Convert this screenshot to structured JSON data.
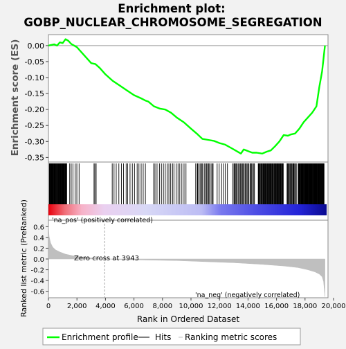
{
  "chart_data": {
    "type": "line",
    "title_line1": "Enrichment plot:",
    "title_line2": "GOBP_NUCLEAR_CHROMOSOME_SEGREGATION",
    "es_ylabel": "Enrichment score (ES)",
    "metric_ylabel": "Ranked list metric (PreRanked)",
    "xlabel": "Rank in Ordered Dataset",
    "xlim": [
      0,
      20000
    ],
    "x_ticks": [
      "0",
      "2,000",
      "4,000",
      "6,000",
      "8,000",
      "10,000",
      "12,000",
      "14,000",
      "16,000",
      "18,000",
      "20,000"
    ],
    "x_tick_values": [
      0,
      2000,
      4000,
      6000,
      8000,
      10000,
      12000,
      14000,
      16000,
      18000,
      20000
    ],
    "es_ylim": [
      -0.36,
      0.03
    ],
    "es_ticks": [
      "0.00",
      "-0.05",
      "-0.10",
      "-0.15",
      "-0.20",
      "-0.25",
      "-0.30",
      "-0.35"
    ],
    "es_tick_values": [
      0.0,
      -0.05,
      -0.1,
      -0.15,
      -0.2,
      -0.25,
      -0.3,
      -0.35
    ],
    "metric_ylim": [
      -0.72,
      0.72
    ],
    "metric_ticks": [
      "0.6",
      "0.4",
      "0.2",
      "0.0",
      "-0.2",
      "-0.4",
      "-0.6"
    ],
    "metric_tick_values": [
      0.6,
      0.4,
      0.2,
      0.0,
      -0.2,
      -0.4,
      -0.6
    ],
    "n_genes": 19400,
    "zero_cross_rank": 3943,
    "zero_cross_label": "Zero cross at 3943",
    "pos_label": "'na_pos' (positively correlated)",
    "neg_label": "'na_neg' (negatively correlated)",
    "es_curve": {
      "x": [
        0,
        200,
        400,
        600,
        800,
        1000,
        1200,
        1400,
        1600,
        1800,
        2000,
        2500,
        3000,
        3300,
        3600,
        4000,
        4500,
        5000,
        5500,
        6000,
        6500,
        6800,
        7000,
        7400,
        7800,
        8200,
        8600,
        9000,
        9500,
        10000,
        10400,
        10800,
        11200,
        11600,
        12000,
        12400,
        12800,
        13200,
        13500,
        13700,
        14000,
        14300,
        14600,
        15000,
        15300,
        15600,
        15900,
        16200,
        16500,
        16800,
        17000,
        17300,
        17600,
        17900,
        18200,
        18500,
        18800,
        19000,
        19200,
        19400
      ],
      "y": [
        0.0,
        0.002,
        0.004,
        0.0,
        0.01,
        0.008,
        0.02,
        0.015,
        0.005,
        0.0,
        -0.005,
        -0.03,
        -0.055,
        -0.058,
        -0.07,
        -0.09,
        -0.11,
        -0.125,
        -0.14,
        -0.155,
        -0.165,
        -0.172,
        -0.175,
        -0.19,
        -0.197,
        -0.2,
        -0.21,
        -0.225,
        -0.24,
        -0.26,
        -0.275,
        -0.292,
        -0.295,
        -0.298,
        -0.305,
        -0.31,
        -0.32,
        -0.33,
        -0.338,
        -0.325,
        -0.33,
        -0.335,
        -0.335,
        -0.338,
        -0.332,
        -0.328,
        -0.315,
        -0.3,
        -0.28,
        -0.282,
        -0.278,
        -0.275,
        -0.26,
        -0.24,
        -0.225,
        -0.21,
        -0.19,
        -0.13,
        -0.08,
        0.0
      ]
    },
    "metric_curve": {
      "x": [
        0,
        50,
        150,
        300,
        500,
        800,
        1200,
        1700,
        2300,
        3000,
        3943,
        5000,
        7000,
        9000,
        11000,
        13000,
        15000,
        16500,
        17500,
        18200,
        18700,
        19000,
        19200,
        19300,
        19400
      ],
      "y": [
        0.62,
        0.42,
        0.3,
        0.22,
        0.17,
        0.13,
        0.09,
        0.06,
        0.04,
        0.02,
        0.0,
        -0.01,
        -0.02,
        -0.03,
        -0.05,
        -0.07,
        -0.1,
        -0.13,
        -0.16,
        -0.2,
        -0.24,
        -0.28,
        -0.33,
        -0.42,
        -0.7
      ]
    },
    "hit_clusters": [
      {
        "start": 50,
        "end": 1300,
        "count": 45
      },
      {
        "start": 1400,
        "end": 2200,
        "count": 6
      },
      {
        "start": 3150,
        "end": 3400,
        "count": 3
      },
      {
        "start": 4400,
        "end": 6900,
        "count": 16
      },
      {
        "start": 7300,
        "end": 9700,
        "count": 18
      },
      {
        "start": 10300,
        "end": 11600,
        "count": 16
      },
      {
        "start": 11800,
        "end": 12600,
        "count": 6
      },
      {
        "start": 12900,
        "end": 14500,
        "count": 24
      },
      {
        "start": 14700,
        "end": 16500,
        "count": 48
      },
      {
        "start": 16700,
        "end": 17400,
        "count": 14
      },
      {
        "start": 17500,
        "end": 19350,
        "count": 70
      }
    ],
    "legend": [
      {
        "label": "Enrichment profile",
        "color": "#00ff00"
      },
      {
        "label": "Hits",
        "color": "#000000"
      },
      {
        "label": "Ranking metric scores",
        "color": "#bfbfbf"
      }
    ],
    "colors": {
      "es_line": "#00ff00",
      "hits": "#000000",
      "metric_fill": "#bfbfbf",
      "zero_line": "#a0a0a0",
      "pos_label": "#ff0000",
      "neg_label": "#0000ff"
    }
  }
}
